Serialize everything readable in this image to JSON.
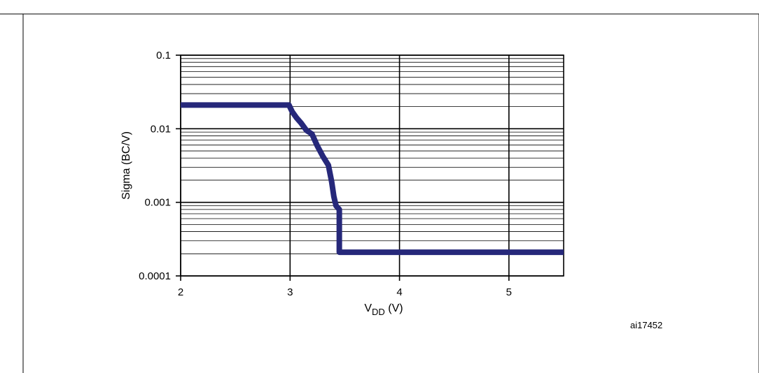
{
  "chart_data": {
    "type": "line",
    "title": "",
    "xlabel": "V",
    "xlabel_subscript": "DD",
    "xlabel_unit": " (V)",
    "ylabel": "Sigma (BC/V)",
    "y_scale": "log",
    "xlim": [
      2,
      5.5
    ],
    "ylim": [
      0.0001,
      0.1
    ],
    "x_ticks": [
      2,
      3,
      4,
      5
    ],
    "x_tick_labels": [
      "2",
      "3",
      "4",
      "5"
    ],
    "y_ticks": [
      0.0001,
      0.001,
      0.01,
      0.1
    ],
    "y_tick_labels": [
      "0.0001",
      "0.001",
      "0.01",
      "0.1"
    ],
    "grid": true,
    "line_color": "#26287a",
    "series": [
      {
        "x": [
          2.0,
          2.99,
          3.02,
          3.06,
          3.1,
          3.15,
          3.2,
          3.25,
          3.3,
          3.35,
          3.38,
          3.4,
          3.42,
          3.45,
          3.45,
          5.5
        ],
        "y": [
          0.021,
          0.021,
          0.017,
          0.014,
          0.012,
          0.0095,
          0.0085,
          0.0058,
          0.0042,
          0.0032,
          0.0019,
          0.0012,
          0.0009,
          0.0008,
          0.00021,
          0.00021
        ]
      }
    ],
    "annotation": "ai17452"
  }
}
